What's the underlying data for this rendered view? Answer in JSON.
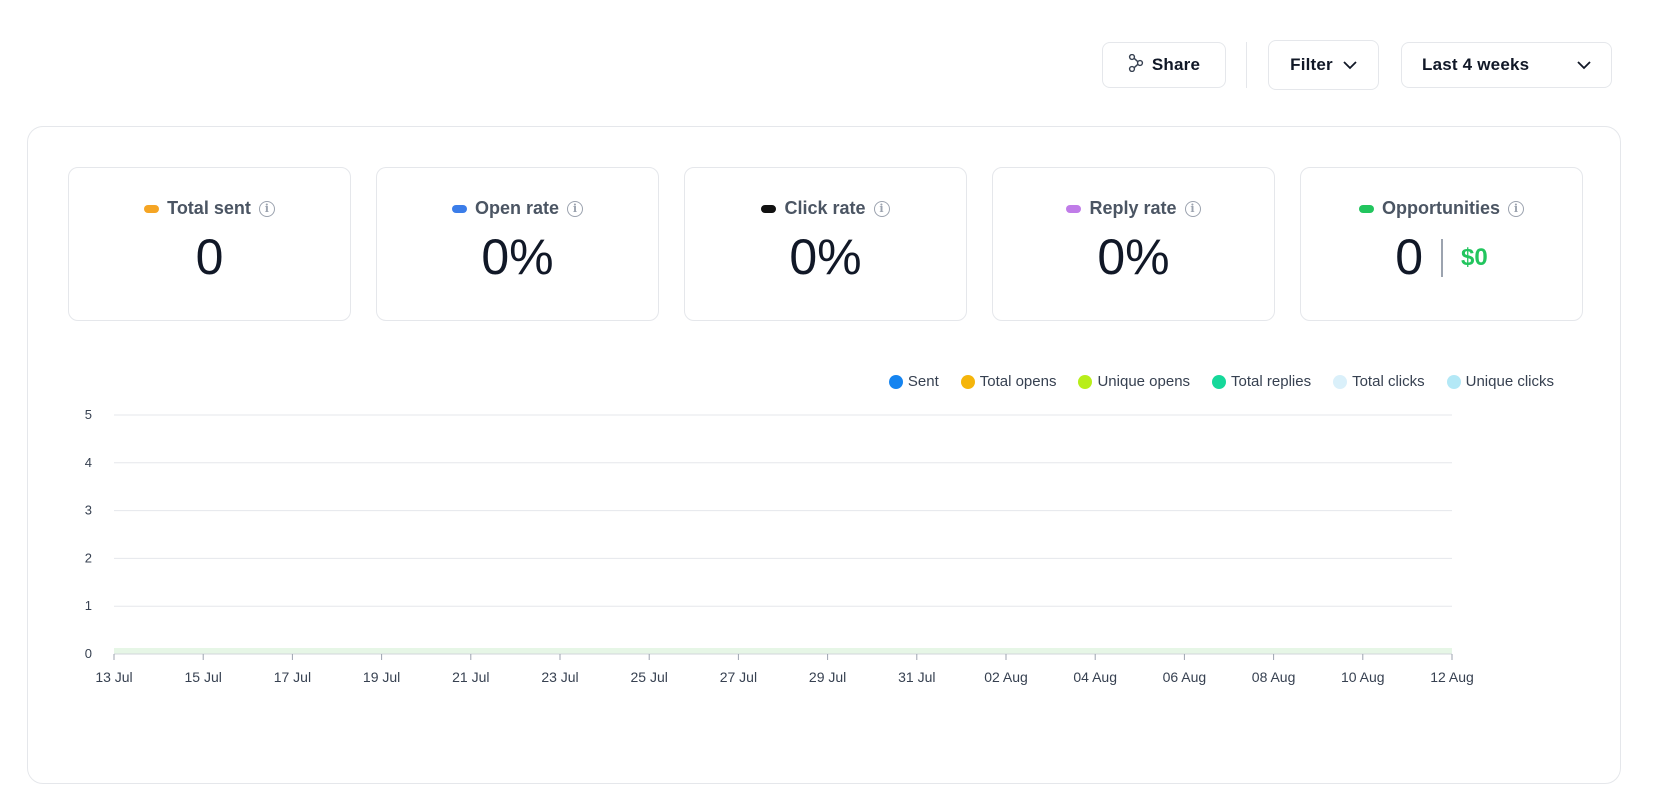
{
  "toolbar": {
    "share_label": "Share",
    "filter_label": "Filter",
    "range_label": "Last 4 weeks"
  },
  "stats": [
    {
      "label": "Total sent",
      "value": "0",
      "color": "#f5a524"
    },
    {
      "label": "Open rate",
      "value": "0%",
      "color": "#3b7de9"
    },
    {
      "label": "Click rate",
      "value": "0%",
      "color": "#111111"
    },
    {
      "label": "Reply rate",
      "value": "0%",
      "color": "#c07ce8"
    },
    {
      "label": "Opportunities",
      "value": "0",
      "money": "$0",
      "color": "#22c55e"
    }
  ],
  "chart_data": {
    "type": "line",
    "x": [
      "13 Jul",
      "14 Jul",
      "15 Jul",
      "16 Jul",
      "17 Jul",
      "18 Jul",
      "19 Jul",
      "20 Jul",
      "21 Jul",
      "22 Jul",
      "23 Jul",
      "24 Jul",
      "25 Jul",
      "26 Jul",
      "27 Jul",
      "28 Jul",
      "29 Jul",
      "30 Jul",
      "31 Jul",
      "01 Aug",
      "02 Aug",
      "03 Aug",
      "04 Aug",
      "05 Aug",
      "06 Aug",
      "07 Aug",
      "08 Aug",
      "09 Aug",
      "10 Aug",
      "11 Aug",
      "12 Aug"
    ],
    "x_tick_labels": [
      "13 Jul",
      "15 Jul",
      "17 Jul",
      "19 Jul",
      "21 Jul",
      "23 Jul",
      "25 Jul",
      "27 Jul",
      "29 Jul",
      "31 Jul",
      "02 Aug",
      "04 Aug",
      "06 Aug",
      "08 Aug",
      "10 Aug",
      "12 Aug"
    ],
    "y_ticks": [
      0,
      1,
      2,
      3,
      4,
      5
    ],
    "ylim": [
      0,
      5
    ],
    "grid": true,
    "legend_position": "top-right",
    "series": [
      {
        "name": "Sent",
        "color": "#1584f0",
        "values": [
          0,
          0,
          0,
          0,
          0,
          0,
          0,
          0,
          0,
          0,
          0,
          0,
          0,
          0,
          0,
          0,
          0,
          0,
          0,
          0,
          0,
          0,
          0,
          0,
          0,
          0,
          0,
          0,
          0,
          0,
          0
        ]
      },
      {
        "name": "Total opens",
        "color": "#f5b50b",
        "values": [
          0,
          0,
          0,
          0,
          0,
          0,
          0,
          0,
          0,
          0,
          0,
          0,
          0,
          0,
          0,
          0,
          0,
          0,
          0,
          0,
          0,
          0,
          0,
          0,
          0,
          0,
          0,
          0,
          0,
          0,
          0
        ]
      },
      {
        "name": "Unique opens",
        "color": "#b8ee1a",
        "values": [
          0,
          0,
          0,
          0,
          0,
          0,
          0,
          0,
          0,
          0,
          0,
          0,
          0,
          0,
          0,
          0,
          0,
          0,
          0,
          0,
          0,
          0,
          0,
          0,
          0,
          0,
          0,
          0,
          0,
          0,
          0
        ]
      },
      {
        "name": "Total replies",
        "color": "#16d89a",
        "values": [
          0,
          0,
          0,
          0,
          0,
          0,
          0,
          0,
          0,
          0,
          0,
          0,
          0,
          0,
          0,
          0,
          0,
          0,
          0,
          0,
          0,
          0,
          0,
          0,
          0,
          0,
          0,
          0,
          0,
          0,
          0
        ]
      },
      {
        "name": "Total clicks",
        "color": "#daf0fa",
        "values": [
          0,
          0,
          0,
          0,
          0,
          0,
          0,
          0,
          0,
          0,
          0,
          0,
          0,
          0,
          0,
          0,
          0,
          0,
          0,
          0,
          0,
          0,
          0,
          0,
          0,
          0,
          0,
          0,
          0,
          0,
          0
        ]
      },
      {
        "name": "Unique clicks",
        "color": "#b3e8f6",
        "values": [
          0,
          0,
          0,
          0,
          0,
          0,
          0,
          0,
          0,
          0,
          0,
          0,
          0,
          0,
          0,
          0,
          0,
          0,
          0,
          0,
          0,
          0,
          0,
          0,
          0,
          0,
          0,
          0,
          0,
          0,
          0
        ]
      }
    ]
  }
}
